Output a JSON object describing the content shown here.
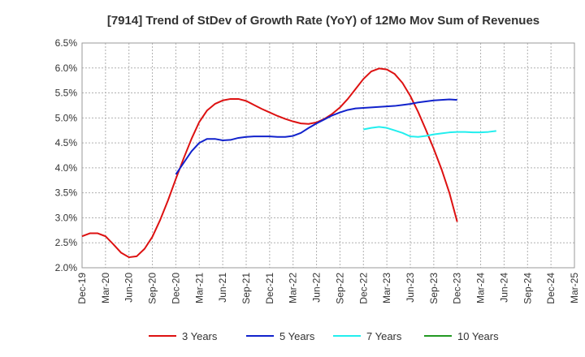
{
  "chart_data": {
    "type": "line",
    "title": "[7914]  Trend of StDev of Growth Rate (YoY) of 12Mo Mov Sum of Revenues",
    "xlabel": "",
    "ylabel": "",
    "ylim": [
      2.0,
      6.5
    ],
    "y_ticks": [
      2.0,
      2.5,
      3.0,
      3.5,
      4.0,
      4.5,
      5.0,
      5.5,
      6.0,
      6.5
    ],
    "y_tick_labels": [
      "2.0%",
      "2.5%",
      "3.0%",
      "3.5%",
      "4.0%",
      "4.5%",
      "5.0%",
      "5.5%",
      "6.0%",
      "6.5%"
    ],
    "x_tick_labels": [
      "Dec-19",
      "Mar-20",
      "Jun-20",
      "Sep-20",
      "Dec-20",
      "Mar-21",
      "Jun-21",
      "Sep-21",
      "Dec-21",
      "Mar-22",
      "Jun-22",
      "Sep-22",
      "Dec-22",
      "Mar-23",
      "Jun-23",
      "Sep-23",
      "Dec-23",
      "Mar-24",
      "Jun-24",
      "Sep-24",
      "Dec-24",
      "Mar-25"
    ],
    "grid": true,
    "legend_position": "bottom",
    "series": [
      {
        "name": "3 Years",
        "color": "#dd1111",
        "start_index": 0,
        "values": [
          2.63,
          2.69,
          2.69,
          2.63,
          2.47,
          2.3,
          2.21,
          2.23,
          2.38,
          2.62,
          2.96,
          3.35,
          3.78,
          4.19,
          4.58,
          4.92,
          5.15,
          5.28,
          5.35,
          5.38,
          5.38,
          5.34,
          5.26,
          5.18,
          5.11,
          5.04,
          4.98,
          4.93,
          4.89,
          4.88,
          4.91,
          4.98,
          5.08,
          5.21,
          5.38,
          5.58,
          5.78,
          5.93,
          5.99,
          5.97,
          5.88,
          5.7,
          5.44,
          5.12,
          4.76,
          4.38,
          3.97,
          3.5,
          2.92
        ]
      },
      {
        "name": "5 Years",
        "color": "#1122cc",
        "start_index": 12,
        "values": [
          3.87,
          4.1,
          4.33,
          4.5,
          4.58,
          4.58,
          4.55,
          4.56,
          4.6,
          4.62,
          4.63,
          4.63,
          4.63,
          4.62,
          4.62,
          4.64,
          4.7,
          4.8,
          4.89,
          4.97,
          5.05,
          5.11,
          5.16,
          5.19,
          5.2,
          5.21,
          5.22,
          5.23,
          5.24,
          5.26,
          5.28,
          5.31,
          5.33,
          5.35,
          5.36,
          5.37,
          5.36
        ]
      },
      {
        "name": "7 Years",
        "color": "#22eeee",
        "start_index": 36,
        "values": [
          4.77,
          4.8,
          4.82,
          4.8,
          4.75,
          4.7,
          4.63,
          4.62,
          4.64,
          4.67,
          4.69,
          4.71,
          4.72,
          4.72,
          4.71,
          4.71,
          4.72,
          4.74
        ]
      },
      {
        "name": "10 Years",
        "color": "#229922",
        "start_index": 0,
        "values": []
      }
    ]
  }
}
